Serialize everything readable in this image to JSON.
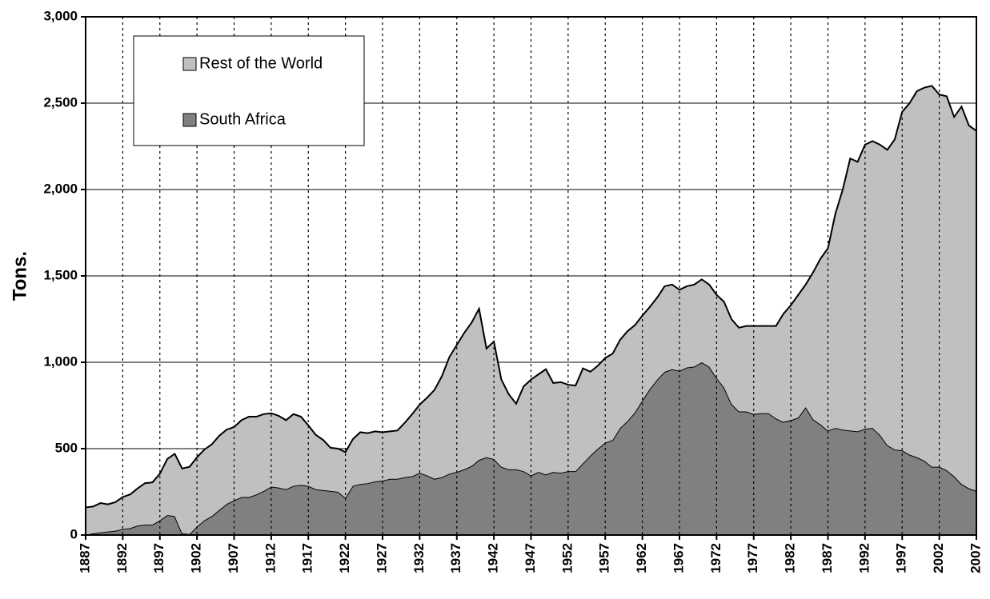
{
  "chart_data": {
    "type": "stacked-area",
    "y_label": "Tons.",
    "x": [
      1887,
      1888,
      1889,
      1890,
      1891,
      1892,
      1893,
      1894,
      1895,
      1896,
      1897,
      1898,
      1899,
      1900,
      1901,
      1902,
      1903,
      1904,
      1905,
      1906,
      1907,
      1908,
      1909,
      1910,
      1911,
      1912,
      1913,
      1914,
      1915,
      1916,
      1917,
      1918,
      1919,
      1920,
      1921,
      1922,
      1923,
      1924,
      1925,
      1926,
      1927,
      1928,
      1929,
      1930,
      1931,
      1932,
      1933,
      1934,
      1935,
      1936,
      1937,
      1938,
      1939,
      1940,
      1941,
      1942,
      1943,
      1944,
      1945,
      1946,
      1947,
      1948,
      1949,
      1950,
      1951,
      1952,
      1953,
      1954,
      1955,
      1956,
      1957,
      1958,
      1959,
      1960,
      1961,
      1962,
      1963,
      1964,
      1965,
      1966,
      1967,
      1968,
      1969,
      1970,
      1971,
      1972,
      1973,
      1974,
      1975,
      1976,
      1977,
      1978,
      1979,
      1980,
      1981,
      1982,
      1983,
      1984,
      1985,
      1986,
      1987,
      1988,
      1989,
      1990,
      1991,
      1992,
      1993,
      1994,
      1995,
      1996,
      1997,
      1998,
      1999,
      2000,
      2001,
      2002,
      2003,
      2004,
      2005,
      2006,
      2007
    ],
    "series": [
      {
        "name": "South Africa",
        "color": "#808080",
        "values": [
          2,
          10,
          15,
          20,
          25,
          35,
          40,
          55,
          60,
          60,
          85,
          115,
          110,
          10,
          5,
          50,
          85,
          110,
          145,
          180,
          200,
          220,
          220,
          235,
          255,
          280,
          275,
          265,
          285,
          290,
          285,
          265,
          260,
          255,
          250,
          215,
          285,
          295,
          300,
          310,
          315,
          325,
          325,
          335,
          340,
          360,
          345,
          325,
          335,
          355,
          365,
          380,
          400,
          435,
          450,
          440,
          395,
          380,
          380,
          370,
          345,
          365,
          350,
          365,
          360,
          370,
          370,
          415,
          460,
          500,
          535,
          550,
          620,
          660,
          710,
          780,
          845,
          900,
          945,
          960,
          950,
          970,
          975,
          1000,
          975,
          910,
          855,
          760,
          715,
          715,
          700,
          705,
          705,
          675,
          655,
          665,
          680,
          740,
          670,
          640,
          605,
          620,
          610,
          605,
          600,
          615,
          620,
          580,
          520,
          495,
          490,
          465,
          450,
          430,
          395,
          395,
          375,
          340,
          295,
          270,
          255
        ]
      },
      {
        "name": "Rest of the World",
        "color": "#c0c0c0",
        "values": [
          158,
          155,
          170,
          158,
          165,
          185,
          195,
          215,
          240,
          245,
          270,
          325,
          360,
          375,
          390,
          400,
          410,
          415,
          430,
          430,
          425,
          445,
          465,
          450,
          445,
          425,
          415,
          400,
          415,
          395,
          350,
          315,
          290,
          250,
          250,
          265,
          270,
          300,
          290,
          290,
          280,
          275,
          280,
          315,
          360,
          395,
          450,
          515,
          585,
          675,
          735,
          790,
          830,
          875,
          630,
          680,
          505,
          435,
          380,
          490,
          555,
          565,
          610,
          515,
          525,
          500,
          495,
          550,
          485,
          480,
          490,
          500,
          510,
          520,
          505,
          490,
          475,
          475,
          495,
          490,
          470,
          470,
          475,
          480,
          475,
          480,
          495,
          490,
          485,
          495,
          510,
          505,
          505,
          535,
          625,
          665,
          710,
          710,
          850,
          960,
          1055,
          1240,
          1390,
          1575,
          1560,
          1645,
          1660,
          1680,
          1710,
          1795,
          1960,
          2035,
          2120,
          2160,
          2205,
          2155,
          2165,
          2080,
          2185,
          2100,
          2085
        ]
      }
    ],
    "xlim": [
      1887,
      2007
    ],
    "xticks": [
      1887,
      1892,
      1897,
      1902,
      1907,
      1912,
      1917,
      1922,
      1927,
      1932,
      1937,
      1942,
      1947,
      1952,
      1957,
      1962,
      1967,
      1972,
      1977,
      1982,
      1987,
      1992,
      1997,
      2002,
      2007
    ],
    "ylim": [
      0,
      3000
    ],
    "yticks": [
      0,
      500,
      {
        "value": 1000,
        "label": "1,000"
      },
      {
        "value": 1500,
        "label": "1,500"
      },
      {
        "value": 2000,
        "label": "2,000"
      },
      {
        "value": 2500,
        "label": "2,500"
      },
      {
        "value": 3000,
        "label": "3,000"
      }
    ],
    "grid": true,
    "legend": "upper left"
  }
}
